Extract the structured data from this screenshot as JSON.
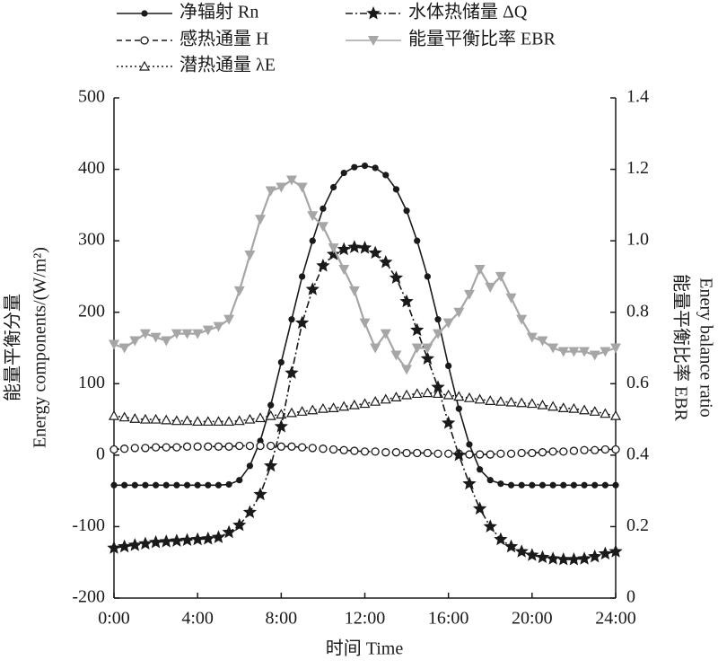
{
  "chart_data": {
    "type": "line",
    "x_label": "时间 Time",
    "y_label": [
      "能量平衡分量",
      "Energy components/(W/m²)"
    ],
    "y2_label": [
      "能量平衡比率 EBR",
      "Enery balance ratio"
    ],
    "x": [
      0,
      0.5,
      1,
      1.5,
      2,
      2.5,
      3,
      3.5,
      4,
      4.5,
      5,
      5.5,
      6,
      6.5,
      7,
      7.5,
      8,
      8.5,
      9,
      9.5,
      10,
      10.5,
      11,
      11.5,
      12,
      12.5,
      13,
      13.5,
      14,
      14.5,
      15,
      15.5,
      16,
      16.5,
      17,
      17.5,
      18,
      18.5,
      19,
      19.5,
      20,
      20.5,
      21,
      21.5,
      22,
      22.5,
      23,
      23.5,
      24
    ],
    "xlim": [
      0,
      24
    ],
    "xticks": [
      {
        "value": 0,
        "label": "0:00"
      },
      {
        "value": 4,
        "label": "4:00"
      },
      {
        "value": 8,
        "label": "8:00"
      },
      {
        "value": 12,
        "label": "12:00"
      },
      {
        "value": 16,
        "label": "16:00"
      },
      {
        "value": 20,
        "label": "20:00"
      },
      {
        "value": 24,
        "label": "24:00"
      }
    ],
    "ylim": [
      -200,
      500
    ],
    "yticks": [
      -200,
      -100,
      0,
      100,
      200,
      300,
      400,
      500
    ],
    "y2lim": [
      0,
      1.4
    ],
    "y2ticks": [
      0,
      0.2,
      0.4,
      0.6,
      0.8,
      {
        "value": 1,
        "label": "1.0"
      },
      1.2,
      1.4
    ],
    "series": [
      {
        "name": "净辐射 Rn",
        "color": "#1a1a1a",
        "marker": "circle-filled",
        "line_style": "solid",
        "values": [
          -42,
          -42,
          -42,
          -42,
          -42,
          -42,
          -42,
          -42,
          -42,
          -42,
          -42,
          -41,
          -35,
          -15,
          20,
          70,
          130,
          190,
          250,
          300,
          345,
          375,
          395,
          403,
          405,
          402,
          392,
          372,
          342,
          300,
          250,
          190,
          125,
          65,
          15,
          -20,
          -35,
          -40,
          -42,
          -42,
          -42,
          -42,
          -42,
          -42,
          -42,
          -42,
          -42,
          -42,
          -42
        ]
      },
      {
        "name": "感热通量 H",
        "color": "#1a1a1a",
        "marker": "circle-open",
        "line_style": "dashed",
        "values": [
          8,
          9,
          10,
          10,
          11,
          11,
          11,
          12,
          12,
          12,
          12,
          12,
          13,
          13,
          13,
          13,
          12,
          12,
          11,
          10,
          9,
          8,
          7,
          6,
          5,
          5,
          4,
          4,
          3,
          3,
          3,
          2,
          2,
          2,
          1,
          1,
          1,
          2,
          2,
          3,
          3,
          4,
          5,
          5,
          6,
          7,
          7,
          8,
          8
        ]
      },
      {
        "name": "潜热通量 λE",
        "color": "#1a1a1a",
        "marker": "triangle-open",
        "line_style": "dotted",
        "values": [
          55,
          53,
          51,
          50,
          50,
          49,
          48,
          48,
          47,
          47,
          47,
          47,
          48,
          50,
          52,
          55,
          57,
          59,
          61,
          63,
          65,
          66,
          68,
          70,
          72,
          75,
          78,
          81,
          84,
          86,
          87,
          86,
          84,
          82,
          80,
          78,
          76,
          75,
          74,
          73,
          72,
          70,
          68,
          66,
          65,
          63,
          61,
          58,
          55
        ]
      },
      {
        "name": "水体热储量 ΔQ",
        "color": "#1a1a1a",
        "marker": "star",
        "line_style": "dashdot",
        "values": [
          -130,
          -128,
          -126,
          -124,
          -122,
          -121,
          -120,
          -119,
          -118,
          -117,
          -115,
          -108,
          -98,
          -80,
          -55,
          -15,
          40,
          115,
          185,
          232,
          265,
          281,
          288,
          291,
          290,
          283,
          270,
          248,
          215,
          175,
          135,
          95,
          45,
          0,
          -40,
          -75,
          -100,
          -118,
          -128,
          -135,
          -140,
          -143,
          -145,
          -146,
          -146,
          -145,
          -142,
          -138,
          -135
        ]
      },
      {
        "name": "能量平衡比率 EBR",
        "color": "#a6a6a6",
        "marker": "triangle-down",
        "line_style": "solid",
        "axis": "y2",
        "values": [
          0.71,
          0.7,
          0.72,
          0.74,
          0.73,
          0.72,
          0.74,
          0.74,
          0.74,
          0.75,
          0.76,
          0.78,
          0.86,
          0.96,
          1.06,
          1.14,
          1.15,
          1.17,
          1.15,
          1.07,
          1.04,
          0.98,
          0.92,
          0.86,
          0.77,
          0.7,
          0.74,
          0.68,
          0.64,
          0.7,
          0.7,
          0.74,
          0.77,
          0.8,
          0.85,
          0.92,
          0.87,
          0.9,
          0.84,
          0.78,
          0.73,
          0.72,
          0.7,
          0.69,
          0.69,
          0.69,
          0.68,
          0.69,
          0.7
        ]
      }
    ]
  }
}
